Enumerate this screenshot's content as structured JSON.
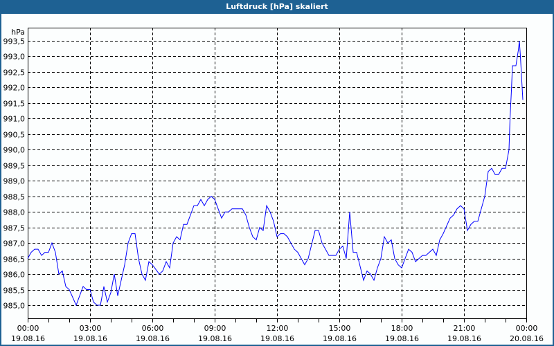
{
  "window": {
    "title": "Luftdruck [hPa] skaliert"
  },
  "chart_data": {
    "type": "line",
    "title": "Luftdruck [hPa] skaliert",
    "ylabel": "hPa",
    "ylim": [
      984.6,
      993.95
    ],
    "xlim": [
      "19.08.16 00:00",
      "20.08.16 00:00"
    ],
    "grid": true,
    "y_ticks": [
      "985,0",
      "985,5",
      "986,0",
      "986,5",
      "987,0",
      "987,5",
      "988,0",
      "988,5",
      "989,0",
      "989,5",
      "990,0",
      "990,5",
      "991,0",
      "991,5",
      "992,0",
      "992,5",
      "993,0",
      "993,5"
    ],
    "x_ticks": [
      {
        "time": "00:00",
        "date": "19.08.16"
      },
      {
        "time": "03:00",
        "date": "19.08.16"
      },
      {
        "time": "06:00",
        "date": "19.08.16"
      },
      {
        "time": "09:00",
        "date": "19.08.16"
      },
      {
        "time": "12:00",
        "date": "19.08.16"
      },
      {
        "time": "15:00",
        "date": "19.08.16"
      },
      {
        "time": "18:00",
        "date": "19.08.16"
      },
      {
        "time": "21:00",
        "date": "19.08.16"
      },
      {
        "time": "00:00",
        "date": "20.08.16"
      }
    ],
    "line_color": "#0000ff",
    "series": [
      {
        "values": [
          [
            "00:00",
            986.5
          ],
          [
            "00:10",
            986.7
          ],
          [
            "00:20",
            986.8
          ],
          [
            "00:30",
            986.8
          ],
          [
            "00:40",
            986.6
          ],
          [
            "00:50",
            986.7
          ],
          [
            "01:00",
            986.7
          ],
          [
            "01:10",
            987.0
          ],
          [
            "01:20",
            986.7
          ],
          [
            "01:30",
            986.0
          ],
          [
            "01:40",
            986.1
          ],
          [
            "01:50",
            985.6
          ],
          [
            "02:00",
            985.5
          ],
          [
            "02:20",
            985.0
          ],
          [
            "02:40",
            985.6
          ],
          [
            "02:50",
            985.5
          ],
          [
            "03:00",
            985.5
          ],
          [
            "03:10",
            985.1
          ],
          [
            "03:20",
            985.0
          ],
          [
            "03:30",
            985.0
          ],
          [
            "03:40",
            985.6
          ],
          [
            "03:50",
            985.1
          ],
          [
            "04:00",
            985.4
          ],
          [
            "04:10",
            986.0
          ],
          [
            "04:20",
            985.3
          ],
          [
            "04:30",
            985.8
          ],
          [
            "04:40",
            986.3
          ],
          [
            "04:50",
            987.0
          ],
          [
            "05:00",
            987.3
          ],
          [
            "05:10",
            987.3
          ],
          [
            "05:20",
            986.5
          ],
          [
            "05:30",
            986.0
          ],
          [
            "05:40",
            985.8
          ],
          [
            "05:50",
            986.4
          ],
          [
            "06:00",
            986.3
          ],
          [
            "06:20",
            986.0
          ],
          [
            "06:30",
            986.1
          ],
          [
            "06:40",
            986.4
          ],
          [
            "06:50",
            986.2
          ],
          [
            "07:00",
            987.0
          ],
          [
            "07:10",
            987.2
          ],
          [
            "07:20",
            987.1
          ],
          [
            "07:30",
            987.6
          ],
          [
            "07:40",
            987.6
          ],
          [
            "08:00",
            988.2
          ],
          [
            "08:10",
            988.2
          ],
          [
            "08:20",
            988.4
          ],
          [
            "08:30",
            988.2
          ],
          [
            "08:40",
            988.4
          ],
          [
            "08:50",
            988.5
          ],
          [
            "09:00",
            988.4
          ],
          [
            "09:10",
            988.1
          ],
          [
            "09:20",
            987.8
          ],
          [
            "09:30",
            988.0
          ],
          [
            "09:40",
            988.0
          ],
          [
            "09:50",
            988.1
          ],
          [
            "10:20",
            988.1
          ],
          [
            "10:30",
            987.9
          ],
          [
            "10:40",
            987.5
          ],
          [
            "10:50",
            987.2
          ],
          [
            "11:00",
            987.1
          ],
          [
            "11:10",
            987.5
          ],
          [
            "11:20",
            987.4
          ],
          [
            "11:30",
            988.2
          ],
          [
            "11:40",
            988.0
          ],
          [
            "11:50",
            987.7
          ],
          [
            "12:00",
            987.2
          ],
          [
            "12:10",
            987.3
          ],
          [
            "12:20",
            987.3
          ],
          [
            "12:30",
            987.2
          ],
          [
            "12:50",
            986.8
          ],
          [
            "13:00",
            986.7
          ],
          [
            "13:20",
            986.3
          ],
          [
            "13:30",
            986.5
          ],
          [
            "13:50",
            987.4
          ],
          [
            "14:00",
            987.4
          ],
          [
            "14:10",
            987.0
          ],
          [
            "14:30",
            986.6
          ],
          [
            "14:50",
            986.6
          ],
          [
            "15:00",
            986.8
          ],
          [
            "15:10",
            986.9
          ],
          [
            "15:20",
            986.5
          ],
          [
            "15:30",
            988.0
          ],
          [
            "15:40",
            986.7
          ],
          [
            "15:50",
            986.7
          ],
          [
            "16:10",
            985.8
          ],
          [
            "16:20",
            986.1
          ],
          [
            "16:30",
            986.0
          ],
          [
            "16:40",
            985.8
          ],
          [
            "16:50",
            986.2
          ],
          [
            "17:00",
            986.5
          ],
          [
            "17:10",
            987.2
          ],
          [
            "17:20",
            987.0
          ],
          [
            "17:30",
            987.1
          ],
          [
            "17:40",
            986.5
          ],
          [
            "17:50",
            986.3
          ],
          [
            "18:00",
            986.2
          ],
          [
            "18:20",
            986.8
          ],
          [
            "18:30",
            986.7
          ],
          [
            "18:40",
            986.4
          ],
          [
            "18:50",
            986.5
          ],
          [
            "19:00",
            986.6
          ],
          [
            "19:10",
            986.6
          ],
          [
            "19:30",
            986.8
          ],
          [
            "19:40",
            986.6
          ],
          [
            "19:50",
            987.1
          ],
          [
            "20:00",
            987.3
          ],
          [
            "20:20",
            987.8
          ],
          [
            "20:30",
            987.9
          ],
          [
            "20:40",
            988.1
          ],
          [
            "20:50",
            988.2
          ],
          [
            "21:00",
            988.1
          ],
          [
            "21:10",
            987.4
          ],
          [
            "21:20",
            987.6
          ],
          [
            "21:30",
            987.7
          ],
          [
            "21:40",
            987.7
          ],
          [
            "21:50",
            988.1
          ],
          [
            "22:00",
            988.5
          ],
          [
            "22:10",
            989.3
          ],
          [
            "22:20",
            989.4
          ],
          [
            "22:30",
            989.2
          ],
          [
            "22:40",
            989.2
          ],
          [
            "22:50",
            989.4
          ],
          [
            "23:00",
            989.4
          ],
          [
            "23:10",
            990.0
          ],
          [
            "23:13",
            991.0
          ],
          [
            "23:17",
            991.9
          ],
          [
            "23:20",
            992.7
          ],
          [
            "23:30",
            992.7
          ],
          [
            "23:37",
            993.2
          ],
          [
            "23:40",
            993.5
          ],
          [
            "23:43",
            993.0
          ],
          [
            "23:47",
            992.2
          ],
          [
            "23:50",
            991.6
          ]
        ]
      }
    ]
  }
}
